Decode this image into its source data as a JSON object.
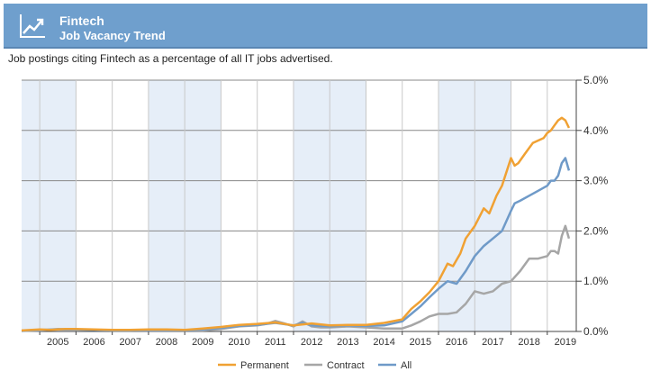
{
  "header": {
    "title": "Fintech",
    "subtitle": "Job Vacancy Trend",
    "icon": "line-chart-icon"
  },
  "description": "Job postings citing Fintech as a percentage of all IT jobs advertised.",
  "colors": {
    "header_bg": "#6f9fcd",
    "band": "#e6eef8",
    "permanent": "#f0a133",
    "contract": "#a6a6a6",
    "all": "#6f9ac8"
  },
  "chart_data": {
    "type": "line",
    "x_unit": "year",
    "xlim": [
      2004.5,
      2019.8
    ],
    "ylim": [
      0,
      5
    ],
    "y_ticks": [
      "0.0%",
      "1.0%",
      "2.0%",
      "3.0%",
      "4.0%",
      "5.0%"
    ],
    "x_ticks": [
      "2005",
      "2006",
      "2007",
      "2008",
      "2009",
      "2010",
      "2011",
      "2012",
      "2013",
      "2014",
      "2015",
      "2016",
      "2017",
      "2018",
      "2019"
    ],
    "grid": true,
    "legend_position": "bottom",
    "series": [
      {
        "name": "Permanent",
        "color": "#f0a133",
        "x": [
          2004.5,
          2005.0,
          2005.3,
          2005.7,
          2006.0,
          2006.5,
          2007.0,
          2007.5,
          2008.0,
          2008.5,
          2009.0,
          2009.5,
          2010.0,
          2010.5,
          2011.0,
          2011.5,
          2012.0,
          2012.5,
          2013.0,
          2013.5,
          2014.0,
          2014.5,
          2015.0,
          2015.25,
          2015.5,
          2015.75,
          2016.0,
          2016.25,
          2016.4,
          2016.6,
          2016.75,
          2017.0,
          2017.25,
          2017.4,
          2017.6,
          2017.75,
          2018.0,
          2018.1,
          2018.2,
          2018.4,
          2018.6,
          2018.75,
          2018.9,
          2019.0,
          2019.1,
          2019.2,
          2019.3,
          2019.4,
          2019.5,
          2019.6
        ],
        "y": [
          0.02,
          0.04,
          0.03,
          0.05,
          0.05,
          0.04,
          0.03,
          0.03,
          0.04,
          0.04,
          0.03,
          0.06,
          0.09,
          0.13,
          0.15,
          0.18,
          0.12,
          0.16,
          0.12,
          0.13,
          0.13,
          0.17,
          0.24,
          0.45,
          0.6,
          0.78,
          1.0,
          1.35,
          1.3,
          1.55,
          1.85,
          2.1,
          2.45,
          2.35,
          2.7,
          2.9,
          3.45,
          3.3,
          3.35,
          3.55,
          3.75,
          3.8,
          3.85,
          3.95,
          4.0,
          4.1,
          4.2,
          4.25,
          4.2,
          4.05
        ]
      },
      {
        "name": "Contract",
        "color": "#a6a6a6",
        "x": [
          2004.5,
          2005.0,
          2005.5,
          2006.0,
          2006.5,
          2007.0,
          2007.5,
          2008.0,
          2008.5,
          2009.0,
          2009.5,
          2010.0,
          2010.5,
          2011.0,
          2011.25,
          2011.5,
          2011.75,
          2012.0,
          2012.25,
          2012.5,
          2012.75,
          2013.0,
          2013.5,
          2014.0,
          2014.5,
          2015.0,
          2015.25,
          2015.5,
          2015.75,
          2016.0,
          2016.25,
          2016.5,
          2016.75,
          2017.0,
          2017.25,
          2017.5,
          2017.75,
          2018.0,
          2018.25,
          2018.5,
          2018.75,
          2019.0,
          2019.1,
          2019.2,
          2019.3,
          2019.4,
          2019.5,
          2019.6
        ],
        "y": [
          0.01,
          0.02,
          0.05,
          0.04,
          0.03,
          0.02,
          0.02,
          0.02,
          0.02,
          0.02,
          0.02,
          0.05,
          0.1,
          0.12,
          0.15,
          0.21,
          0.16,
          0.1,
          0.2,
          0.1,
          0.08,
          0.08,
          0.1,
          0.08,
          0.06,
          0.06,
          0.12,
          0.2,
          0.3,
          0.35,
          0.35,
          0.38,
          0.55,
          0.8,
          0.75,
          0.8,
          0.95,
          1.0,
          1.2,
          1.45,
          1.45,
          1.5,
          1.6,
          1.6,
          1.55,
          1.9,
          2.1,
          1.85
        ]
      },
      {
        "name": "All",
        "color": "#6f9ac8",
        "x": [
          2004.5,
          2005.0,
          2005.5,
          2006.0,
          2006.5,
          2007.0,
          2007.5,
          2008.0,
          2008.5,
          2009.0,
          2009.5,
          2010.0,
          2010.5,
          2011.0,
          2011.5,
          2012.0,
          2012.25,
          2012.5,
          2013.0,
          2013.5,
          2014.0,
          2014.5,
          2015.0,
          2015.25,
          2015.5,
          2015.75,
          2016.0,
          2016.25,
          2016.5,
          2016.75,
          2017.0,
          2017.25,
          2017.5,
          2017.75,
          2018.0,
          2018.1,
          2018.25,
          2018.5,
          2018.75,
          2019.0,
          2019.1,
          2019.2,
          2019.3,
          2019.4,
          2019.5,
          2019.6
        ],
        "y": [
          0.01,
          0.03,
          0.04,
          0.04,
          0.03,
          0.02,
          0.02,
          0.03,
          0.03,
          0.02,
          0.04,
          0.07,
          0.11,
          0.13,
          0.17,
          0.12,
          0.17,
          0.12,
          0.1,
          0.12,
          0.11,
          0.12,
          0.2,
          0.35,
          0.5,
          0.68,
          0.85,
          1.0,
          0.95,
          1.2,
          1.5,
          1.7,
          1.85,
          2.0,
          2.4,
          2.55,
          2.6,
          2.7,
          2.8,
          2.9,
          3.0,
          3.0,
          3.1,
          3.35,
          3.45,
          3.2
        ]
      }
    ]
  }
}
